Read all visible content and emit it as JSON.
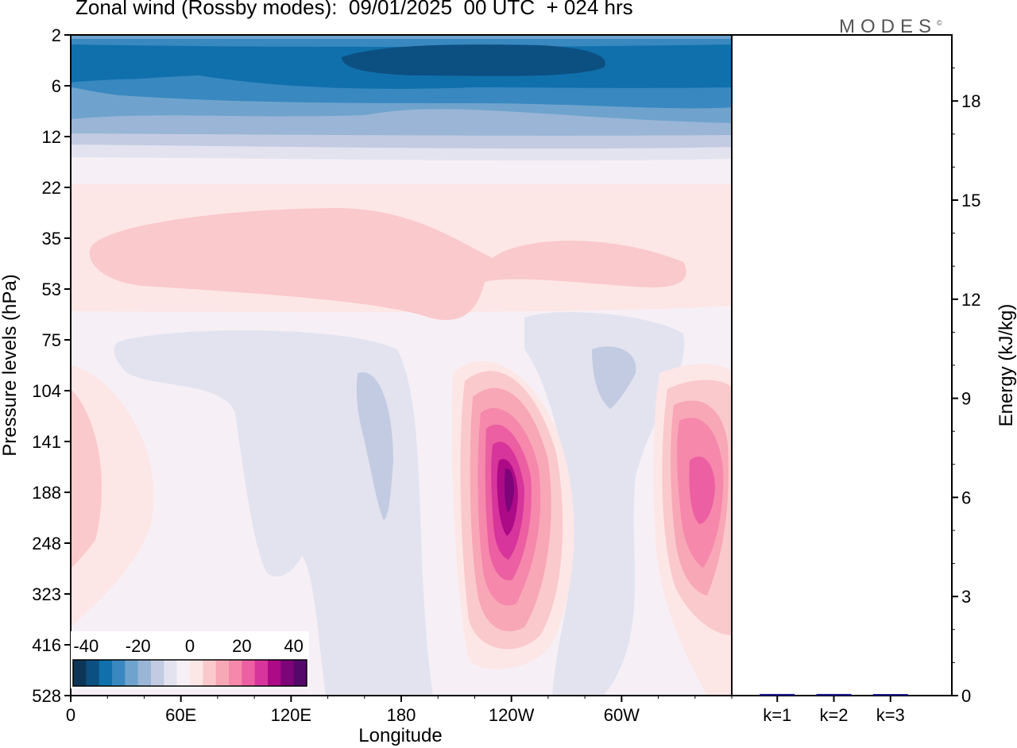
{
  "title": "Zonal wind (Rossby modes):  09/01/2025  00 UTC  + 024 hrs",
  "brand": "MODES",
  "brand_mark": "©",
  "chart_data": [
    {
      "type": "heatmap",
      "xlabel": "Longitude",
      "ylabel": "Pressure levels (hPa)",
      "x_ticks": [
        "0",
        "60E",
        "120E",
        "180",
        "120W",
        "60W"
      ],
      "y_ticks": [
        "2",
        "6",
        "12",
        "22",
        "35",
        "53",
        "75",
        "104",
        "141",
        "188",
        "248",
        "323",
        "416",
        "528"
      ],
      "colorbar": {
        "tick_labels": [
          "-40",
          "-20",
          "0",
          "20",
          "40"
        ],
        "range": [
          -45,
          45
        ],
        "colors": [
          "#0d3557",
          "#0c4f81",
          "#1070ac",
          "#3988c0",
          "#6fa3cd",
          "#9ab5d6",
          "#c3cbe2",
          "#e3e3f0",
          "#f6f0f6",
          "#fde6e6",
          "#fac9cc",
          "#f8a7b7",
          "#f588ab",
          "#ec5fa2",
          "#d7359b",
          "#ad0a87",
          "#7d0579",
          "#54096a"
        ]
      },
      "values_note_levels": [
        "2",
        "6",
        "12",
        "22",
        "35",
        "53",
        "75",
        "104",
        "141",
        "188",
        "248",
        "323",
        "416",
        "528"
      ],
      "features": {
        "upper_easterlies": {
          "levels": "2-22",
          "min_value": -40
        },
        "westerly_band": {
          "levels": "22-75",
          "value": 5
        },
        "jet_120W": {
          "longitude": "120W",
          "level": "188",
          "max_value": 45
        },
        "jet_east": {
          "longitude": "30W",
          "level": "188",
          "max_value": 30
        }
      }
    },
    {
      "type": "bar",
      "categories": [
        "k=1",
        "k=2",
        "k=3"
      ],
      "values": [
        0.05,
        0.05,
        0.03
      ],
      "ylabel": "Energy (kJ/kg)",
      "ylim": [
        0,
        20
      ],
      "y_ticks": [
        "0",
        "3",
        "6",
        "9",
        "12",
        "15",
        "18"
      ],
      "bar_color": "#1a1a8c"
    }
  ]
}
